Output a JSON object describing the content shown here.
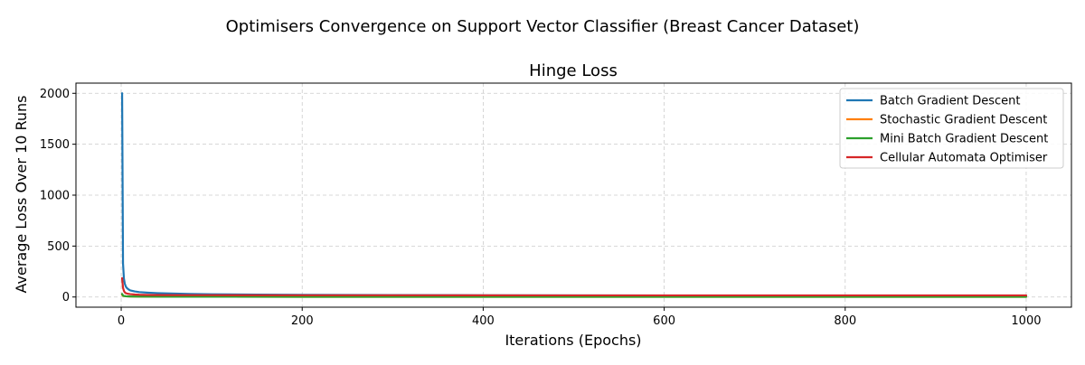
{
  "figure": {
    "suptitle": "Optimisers Convergence on Support Vector Classifier (Breast Cancer Dataset)"
  },
  "chart_data": {
    "type": "line",
    "title": "Hinge Loss",
    "xlabel": "Iterations (Epochs)",
    "ylabel": "Average Loss Over 10 Runs",
    "xlim": [
      -50,
      1050
    ],
    "ylim": [
      -100,
      2100
    ],
    "xticks": [
      0,
      200,
      400,
      600,
      800,
      1000
    ],
    "yticks": [
      0,
      500,
      1000,
      1500,
      2000
    ],
    "grid": true,
    "grid_style": "dashed",
    "legend_position": "top-right",
    "series": [
      {
        "name": "Batch Gradient Descent",
        "color": "#1f77b4",
        "x": [
          1,
          2,
          3,
          4,
          5,
          6,
          8,
          10,
          15,
          20,
          30,
          40,
          50,
          75,
          100,
          150,
          200,
          300,
          400,
          500,
          600,
          700,
          800,
          900,
          1000
        ],
        "y": [
          2000,
          330,
          180,
          130,
          105,
          90,
          75,
          65,
          55,
          48,
          42,
          38,
          35,
          30,
          27,
          23,
          21,
          19,
          17,
          16,
          15,
          14,
          13,
          13,
          12
        ]
      },
      {
        "name": "Stochastic Gradient Descent",
        "color": "#ff7f0e",
        "x": [
          1,
          2,
          3,
          5,
          10,
          20,
          50,
          100,
          200,
          400,
          600,
          800,
          1000
        ],
        "y": [
          20,
          12,
          9,
          7,
          5,
          4,
          3,
          3,
          2,
          2,
          2,
          2,
          2
        ]
      },
      {
        "name": "Mini Batch Gradient Descent",
        "color": "#2ca02c",
        "x": [
          1,
          2,
          3,
          5,
          10,
          20,
          50,
          100,
          200,
          400,
          600,
          800,
          1000
        ],
        "y": [
          30,
          15,
          10,
          7,
          5,
          4,
          3,
          3,
          2,
          2,
          2,
          2,
          2
        ]
      },
      {
        "name": "Cellular Automata Optimiser",
        "color": "#d62728",
        "x": [
          1,
          2,
          3,
          4,
          5,
          7,
          10,
          15,
          20,
          30,
          50,
          75,
          100,
          200,
          300,
          500,
          700,
          1000
        ],
        "y": [
          185,
          90,
          60,
          45,
          38,
          32,
          28,
          24,
          22,
          20,
          19,
          18,
          18,
          17,
          17,
          16,
          16,
          16
        ]
      }
    ]
  }
}
